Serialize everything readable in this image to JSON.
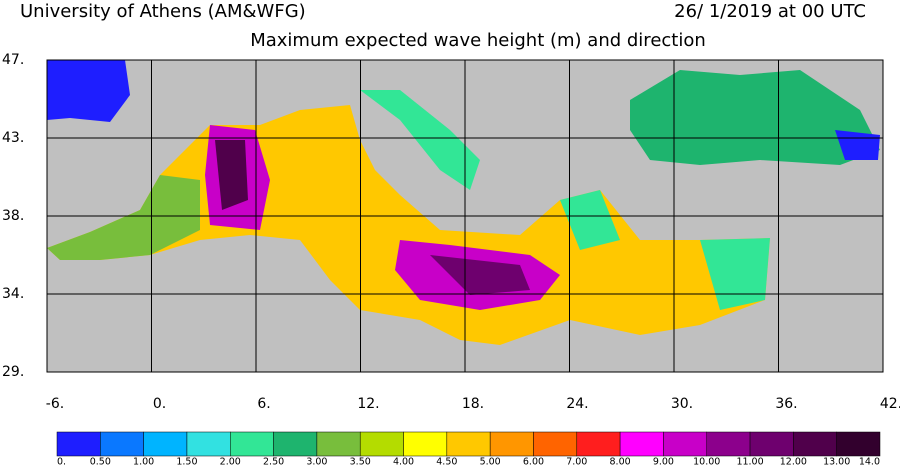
{
  "header": {
    "left": "University of Athens (AM&WFG)",
    "right": "26/ 1/2019 at 00 UTC",
    "title": "Maximum expected wave height (m) and direction"
  },
  "map": {
    "lat_labels": [
      "47.",
      "43.",
      "38.",
      "34.",
      "29."
    ],
    "lon_labels": [
      "-6.",
      "0.",
      "6.",
      "12.",
      "18.",
      "24.",
      "30.",
      "36.",
      "42."
    ]
  },
  "colorbar": {
    "labels": [
      "0.",
      "0.50",
      "1.00",
      "1.50",
      "2.00",
      "2.50",
      "3.00",
      "3.50",
      "4.00",
      "4.50",
      "5.00",
      "6.00",
      "7.00",
      "8.00",
      "9.00",
      "10.00",
      "11.00",
      "12.00",
      "13.00",
      "14.0"
    ],
    "colors": [
      "#1e1eff",
      "#0a78ff",
      "#00b4ff",
      "#32e1e1",
      "#32e696",
      "#1eb46e",
      "#78be3c",
      "#b4dc00",
      "#ffff00",
      "#ffc800",
      "#ff9600",
      "#ff6400",
      "#ff1e1e",
      "#ff00ff",
      "#c800c8",
      "#8c008c",
      "#6e006e",
      "#50004b",
      "#32002d"
    ]
  }
}
